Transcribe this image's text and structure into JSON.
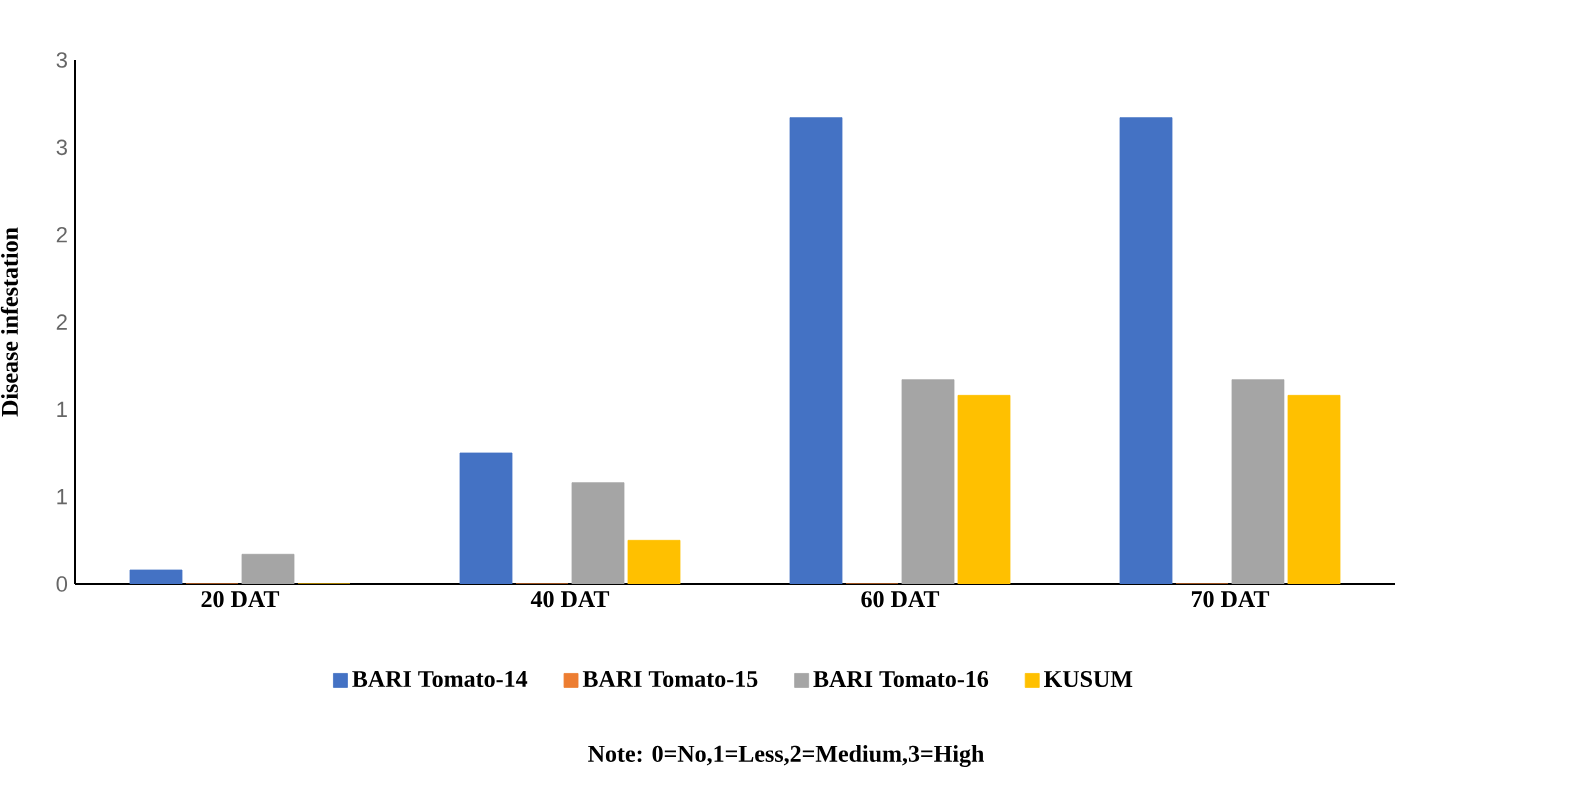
{
  "chart_data": {
    "type": "bar",
    "ylabel": "Disease infestation",
    "categories": [
      "20 DAT",
      "40 DAT",
      "60 DAT",
      "70 DAT"
    ],
    "series": [
      {
        "name": "BARI Tomato-14",
        "color": "#4472c4",
        "values": [
          0.08,
          0.75,
          2.67,
          2.67
        ]
      },
      {
        "name": "BARI Tomato-15",
        "color": "#ed7d31",
        "values": [
          0,
          0,
          0,
          0
        ]
      },
      {
        "name": "BARI Tomato-16",
        "color": "#a5a5a5",
        "values": [
          0.17,
          0.58,
          1.17,
          1.17
        ]
      },
      {
        "name": "KUSUM",
        "color": "#ffc000",
        "values": [
          0,
          0.25,
          1.08,
          1.08
        ]
      }
    ],
    "ylim": [
      0,
      3
    ],
    "yticks": [
      0,
      {
        "value": 0.5,
        "label": "1"
      },
      1,
      {
        "value": 1.5,
        "label": "2"
      },
      2,
      {
        "value": 2.5,
        "label": "3"
      },
      3
    ],
    "legend": "bottom",
    "annotations": [
      "Note: 0=No,1=Less,2=Medium,3=High"
    ]
  }
}
